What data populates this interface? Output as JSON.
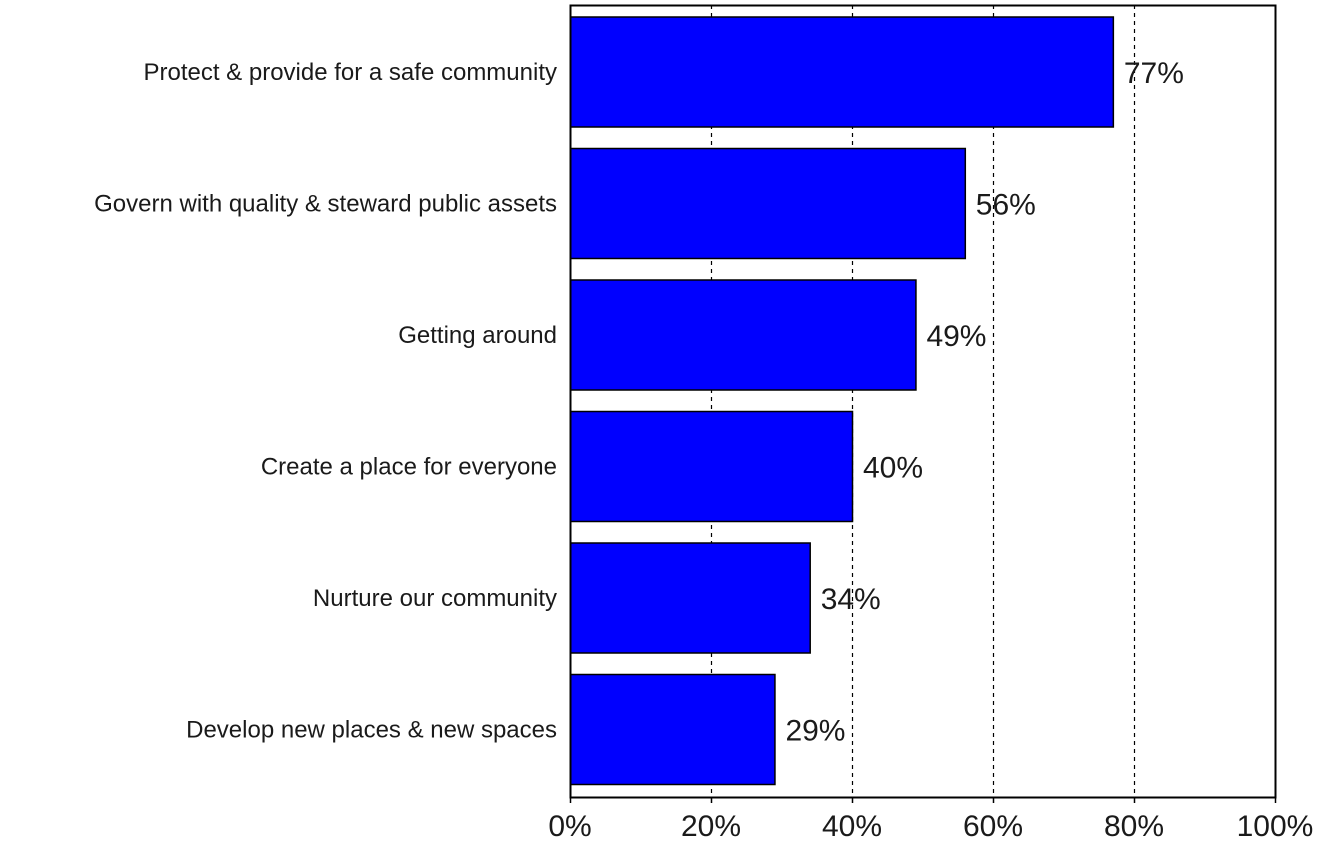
{
  "chart_data": {
    "type": "bar",
    "orientation": "horizontal",
    "title": "",
    "xlabel": "",
    "ylabel": "",
    "categories": [
      "Protect & provide for a safe community",
      "Govern with quality & steward public assets",
      "Getting around",
      "Create a place for everyone",
      "Nurture our community",
      "Develop new places & new spaces"
    ],
    "values": [
      77,
      56,
      49,
      40,
      34,
      29
    ],
    "value_labels": [
      "77%",
      "56%",
      "49%",
      "40%",
      "34%",
      "29%"
    ],
    "xlim": [
      0,
      100
    ],
    "x_ticks": [
      0,
      20,
      40,
      60,
      80,
      100
    ],
    "x_tick_labels": [
      "0%",
      "20%",
      "40%",
      "60%",
      "80%",
      "100%"
    ],
    "grid": "vertical dashed",
    "legend": "none",
    "colors": {
      "bar_fill": "#0000ff",
      "bar_stroke": "#000000",
      "grid": "#000000",
      "frame": "#000000"
    }
  }
}
